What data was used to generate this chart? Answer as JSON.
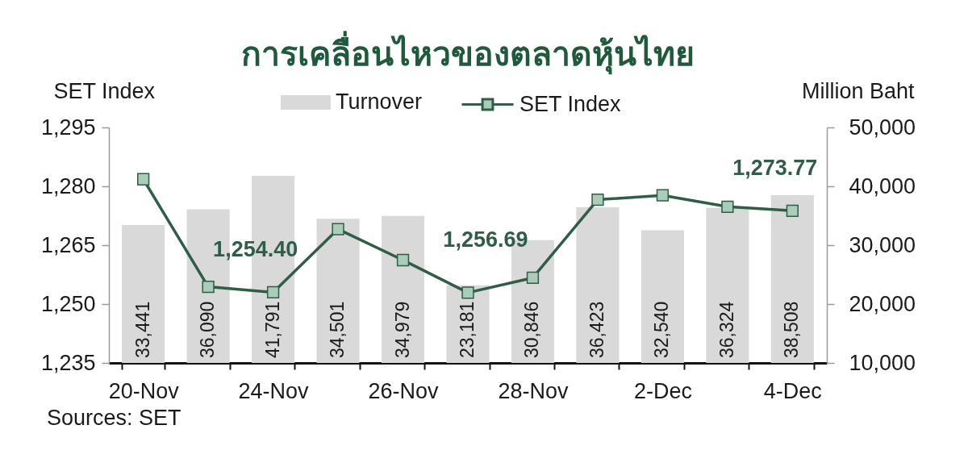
{
  "chart_data": {
    "type": "bar",
    "title": "การเคลื่อนไหวของตลาดหุ้นไทย",
    "ylabel": "SET Index",
    "y2label": "Million Baht",
    "categories": [
      "20-Nov",
      null,
      "24-Nov",
      null,
      "26-Nov",
      null,
      "28-Nov",
      null,
      "2-Dec",
      null,
      "4-Dec"
    ],
    "series": [
      {
        "name": "Turnover",
        "axis": "y2",
        "color": "#d9d9d9",
        "values": [
          33441,
          36090,
          41791,
          34501,
          34979,
          23181,
          30846,
          36423,
          32540,
          36324,
          38508
        ],
        "value_labels": [
          "33,441",
          "36,090",
          "41,791",
          "34,501",
          "34,979",
          "23,181",
          "30,846",
          "36,423",
          "32,540",
          "36,324",
          "38,508"
        ]
      },
      {
        "name": "SET Index",
        "type": "line",
        "color": "#2f5e48",
        "values": [
          1281.8,
          1254.4,
          1253.0,
          1269.1,
          1261.2,
          1252.9,
          1256.69,
          1276.6,
          1277.7,
          1274.8,
          1273.77
        ],
        "value_labels": [
          null,
          "1,254.40",
          null,
          null,
          null,
          null,
          "1,256.69",
          null,
          null,
          null,
          "1,273.77"
        ]
      }
    ],
    "ylim": [
      1235,
      1295
    ],
    "yticks": [
      {
        "value": 1235,
        "label": "1,235"
      },
      {
        "value": 1250,
        "label": "1,250"
      },
      {
        "value": 1265,
        "label": "1,265"
      },
      {
        "value": 1280,
        "label": "1,280"
      },
      {
        "value": 1295,
        "label": "1,295"
      }
    ],
    "y2lim": [
      10000,
      50000
    ],
    "y2ticks": [
      {
        "value": 10000,
        "label": "10,000"
      },
      {
        "value": 20000,
        "label": "20,000"
      },
      {
        "value": 30000,
        "label": "30,000"
      },
      {
        "value": 40000,
        "label": "40,000"
      },
      {
        "value": 50000,
        "label": "50,000"
      }
    ],
    "legend": "top",
    "marker": "square",
    "annotations": [
      "Sources: SET"
    ]
  }
}
